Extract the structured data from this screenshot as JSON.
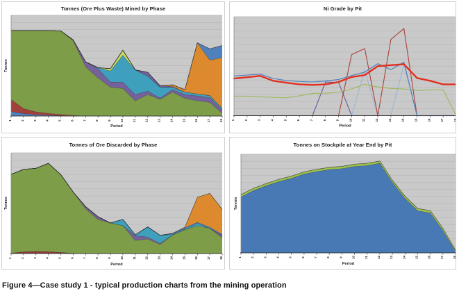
{
  "caption": "Figure 4—Case study 1 - typical production charts from the mining operation",
  "periods": [
    "1",
    "2",
    "3",
    "4",
    "5",
    "6",
    "7",
    "8",
    "9",
    "10",
    "11",
    "12",
    "13",
    "14",
    "15",
    "16",
    "17",
    "18"
  ],
  "colors": {
    "plot_background": "#c9c9c9",
    "gridline": "#b9b9b9",
    "axis": "#3a3a3a",
    "outline": "#2c2c2c",
    "panel_border": "#cfcfcf",
    "title_text": "#1d1b1b"
  },
  "chart_data": [
    {
      "id": "mined-by-phase",
      "type": "area",
      "title": "Tonnes (Ore Plus Waste) Mined by Phase",
      "xlabel": "Period",
      "ylabel": "Tonnes",
      "x": [
        1,
        2,
        3,
        4,
        5,
        6,
        7,
        8,
        9,
        10,
        11,
        12,
        13,
        14,
        15,
        16,
        17,
        18
      ],
      "ylim": [
        0,
        1
      ],
      "grid_intervals": 14,
      "legend": "none",
      "note": "stacked area; values are cumulative band tops as fraction of plot height",
      "series": [
        {
          "name": "phase-blue",
          "color": "#4f81bd",
          "cumulative": [
            0.045,
            0.025,
            0.014,
            0.009,
            0.005,
            0.002,
            0,
            0,
            0,
            0,
            0,
            0,
            0,
            0,
            0,
            0,
            0,
            0
          ]
        },
        {
          "name": "phase-red",
          "color": "#a2403a",
          "cumulative": [
            0.165,
            0.075,
            0.042,
            0.027,
            0.016,
            0.007,
            0.002,
            0,
            0,
            0,
            0,
            0,
            0,
            0,
            0,
            0,
            0,
            0
          ]
        },
        {
          "name": "phase-green",
          "color": "#7e9d48",
          "cumulative": [
            0.848,
            0.848,
            0.848,
            0.848,
            0.845,
            0.75,
            0.49,
            0.38,
            0.287,
            0.274,
            0.152,
            0.214,
            0.166,
            0.238,
            0.177,
            0.152,
            0.137,
            0.028
          ]
        },
        {
          "name": "phase-purple",
          "color": "#75619c",
          "cumulative": [
            0.848,
            0.848,
            0.848,
            0.848,
            0.845,
            0.755,
            0.538,
            0.47,
            0.338,
            0.336,
            0.214,
            0.248,
            0.18,
            0.263,
            0.214,
            0.2,
            0.183,
            0.058
          ]
        },
        {
          "name": "phase-teal",
          "color": "#3fa0bd",
          "cumulative": [
            0.848,
            0.848,
            0.848,
            0.848,
            0.845,
            0.755,
            0.538,
            0.48,
            0.448,
            0.605,
            0.458,
            0.397,
            0.287,
            0.287,
            0.238,
            0.22,
            0.204,
            0.076
          ]
        },
        {
          "name": "phase-lime",
          "color": "#cada5e",
          "cumulative": [
            0.848,
            0.848,
            0.848,
            0.848,
            0.845,
            0.755,
            0.538,
            0.48,
            0.47,
            0.654,
            0.458,
            0.397,
            0.287,
            0.287,
            0.238,
            0.22,
            0.204,
            0.076
          ]
        },
        {
          "name": "phase-purple2",
          "color": "#75619c",
          "cumulative": [
            0.848,
            0.848,
            0.848,
            0.848,
            0.845,
            0.755,
            0.538,
            0.48,
            0.47,
            0.654,
            0.458,
            0.434,
            0.3,
            0.295,
            0.238,
            0.22,
            0.204,
            0.076
          ]
        },
        {
          "name": "phase-orange",
          "color": "#dd8a2e",
          "cumulative": [
            0.848,
            0.848,
            0.848,
            0.848,
            0.845,
            0.755,
            0.538,
            0.48,
            0.47,
            0.654,
            0.458,
            0.434,
            0.3,
            0.31,
            0.262,
            0.727,
            0.556,
            0.58
          ]
        },
        {
          "name": "phase-blue2",
          "color": "#4f81bd",
          "cumulative": [
            0.848,
            0.848,
            0.848,
            0.848,
            0.845,
            0.755,
            0.538,
            0.48,
            0.47,
            0.654,
            0.458,
            0.434,
            0.3,
            0.31,
            0.262,
            0.727,
            0.667,
            0.7
          ]
        }
      ]
    },
    {
      "id": "ni-grade-by-pit",
      "type": "line",
      "title": "Ni Grade by Pit",
      "xlabel": "Period",
      "ylabel": "",
      "x": [
        1,
        2,
        3,
        4,
        5,
        6,
        7,
        8,
        9,
        10,
        11,
        12,
        13,
        14,
        15,
        16,
        17,
        18
      ],
      "ylim": [
        0,
        1
      ],
      "grid_intervals": 14,
      "legend": "none",
      "note": "line chart; values are fraction of plot height",
      "series": [
        {
          "name": "pit-purple",
          "color": "#6c5a9e",
          "width": 1.1,
          "values": [
            0,
            0,
            0,
            0,
            0,
            0,
            0,
            0.34,
            0.335,
            0,
            0,
            0,
            0,
            0,
            0,
            0,
            0,
            0
          ]
        },
        {
          "name": "pit-lightblue",
          "color": "#94b2d9",
          "width": 1.1,
          "dash": "1.8 1.2",
          "values": [
            0,
            0,
            0,
            0,
            0,
            0,
            0,
            0,
            0,
            0,
            0.46,
            0,
            0,
            0.52,
            0,
            0,
            0,
            0
          ]
        },
        {
          "name": "pit-green",
          "color": "#9cba59",
          "width": 1.1,
          "values": [
            0.197,
            0.197,
            0.19,
            0.185,
            0.18,
            0.2,
            0.225,
            0.227,
            0.235,
            0.271,
            0.317,
            0.29,
            0.275,
            0.27,
            0.255,
            0.26,
            0.26,
            0
          ]
        },
        {
          "name": "pit-darkred",
          "color": "#a8423a",
          "width": 1.1,
          "values": [
            0,
            0,
            0,
            0,
            0,
            0,
            0,
            0,
            0,
            0.617,
            0.678,
            0,
            0.77,
            0.88,
            0,
            0,
            0,
            0
          ]
        },
        {
          "name": "pit-blue",
          "color": "#4f81bd",
          "width": 1.2,
          "values": [
            0.4,
            0.41,
            0.42,
            0.375,
            0.355,
            0.345,
            0.34,
            0.35,
            0.365,
            0.405,
            0.44,
            0.525,
            0.465,
            0.54,
            0,
            0,
            0,
            0
          ]
        },
        {
          "name": "pit-red",
          "color": "#e03020",
          "width": 2.4,
          "values": [
            0.375,
            0.388,
            0.402,
            0.352,
            0.333,
            0.316,
            0.31,
            0.316,
            0.34,
            0.39,
            0.41,
            0.5,
            0.51,
            0.52,
            0.38,
            0.352,
            0.316,
            0.316
          ]
        }
      ]
    },
    {
      "id": "ore-discarded-by-phase",
      "type": "area",
      "title": "Tonnes of Ore Discarded by Phase",
      "xlabel": "Period",
      "ylabel": "Tonnes",
      "x": [
        1,
        2,
        3,
        4,
        5,
        6,
        7,
        8,
        9,
        10,
        11,
        12,
        13,
        14,
        15,
        16,
        17,
        18
      ],
      "ylim": [
        0,
        1
      ],
      "grid_intervals": 14,
      "legend": "none",
      "note": "stacked area; values are cumulative band tops as fraction of plot height",
      "series": [
        {
          "name": "phase-darkred",
          "color": "#8c3a34",
          "cumulative": [
            0.005,
            0.018,
            0.022,
            0.02,
            0.012,
            0.004,
            0,
            0,
            0,
            0,
            0,
            0,
            0,
            0,
            0,
            0,
            0,
            0
          ]
        },
        {
          "name": "phase-green",
          "color": "#7e9d48",
          "cumulative": [
            0.786,
            0.836,
            0.846,
            0.896,
            0.784,
            0.611,
            0.446,
            0.339,
            0.304,
            0.279,
            0.131,
            0.145,
            0.091,
            0.185,
            0.238,
            0.278,
            0.251,
            0.158
          ]
        },
        {
          "name": "phase-purple",
          "color": "#75619c",
          "cumulative": [
            0.786,
            0.836,
            0.846,
            0.896,
            0.784,
            0.611,
            0.466,
            0.366,
            0.304,
            0.279,
            0.179,
            0.165,
            0.101,
            0.185,
            0.238,
            0.278,
            0.251,
            0.179
          ]
        },
        {
          "name": "phase-teal",
          "color": "#3fa0bd",
          "cumulative": [
            0.786,
            0.836,
            0.846,
            0.896,
            0.784,
            0.611,
            0.466,
            0.366,
            0.304,
            0.339,
            0.186,
            0.265,
            0.181,
            0.19,
            0.243,
            0.3,
            0.251,
            0.179
          ]
        },
        {
          "name": "phase-blue",
          "color": "#4f81bd",
          "cumulative": [
            0.786,
            0.836,
            0.846,
            0.896,
            0.784,
            0.611,
            0.466,
            0.366,
            0.304,
            0.339,
            0.186,
            0.265,
            0.181,
            0.2,
            0.258,
            0.31,
            0.263,
            0.191
          ]
        },
        {
          "name": "phase-orange",
          "color": "#dd8a2e",
          "cumulative": [
            0.786,
            0.836,
            0.846,
            0.896,
            0.784,
            0.611,
            0.466,
            0.366,
            0.304,
            0.339,
            0.186,
            0.265,
            0.181,
            0.2,
            0.262,
            0.558,
            0.598,
            0.438
          ]
        }
      ]
    },
    {
      "id": "stockpile-by-pit",
      "type": "area",
      "title": "Tonnes on Stockpile at Year End by Pit",
      "xlabel": "Period",
      "ylabel": "Tonnes",
      "x": [
        1,
        2,
        3,
        4,
        5,
        6,
        7,
        8,
        9,
        10,
        11,
        12,
        13,
        14,
        15,
        16,
        17,
        18
      ],
      "ylim": [
        0,
        1
      ],
      "grid_intervals": 14,
      "legend": "none",
      "note": "stacked area; values are cumulative band tops as fraction of plot height",
      "series": [
        {
          "name": "pit-blue",
          "color": "#4879b4",
          "cumulative": [
            0.568,
            0.633,
            0.681,
            0.724,
            0.756,
            0.8,
            0.825,
            0.845,
            0.855,
            0.877,
            0.886,
            0.909,
            0.714,
            0.552,
            0.428,
            0.406,
            0.227,
            0.016
          ]
        },
        {
          "name": "pit-green",
          "color": "#9dc04f",
          "cumulative": [
            0.59,
            0.655,
            0.703,
            0.746,
            0.778,
            0.822,
            0.847,
            0.867,
            0.877,
            0.899,
            0.908,
            0.931,
            0.736,
            0.574,
            0.45,
            0.428,
            0.249,
            0.028
          ]
        }
      ]
    }
  ]
}
